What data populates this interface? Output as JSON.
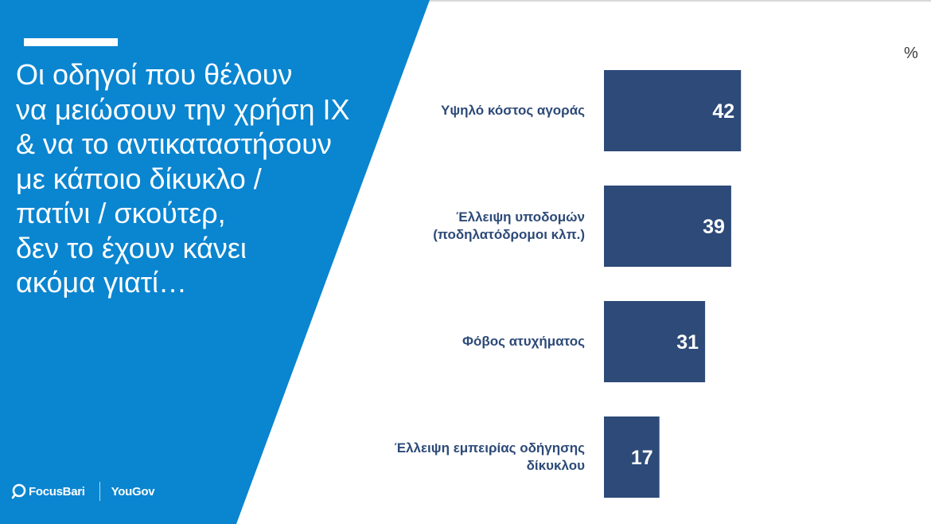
{
  "slide": {
    "headline": "Οι οδηγοί που θέλουν\nνα μειώσουν την χρήση ΙΧ\n& να το αντικαταστήσουν\nμε κάποιο δίκυκλο /\nπατίνι / σκούτερ,\nδεν το έχουν κάνει\nακόμα γιατί…",
    "unit": "%",
    "logos": {
      "focus": "FocusBari",
      "yougov": "YouGov"
    }
  },
  "colors": {
    "panel": "#0a85d0",
    "bar": "#2d4a78",
    "text": "#2d4a78"
  },
  "chart_data": {
    "type": "bar",
    "orientation": "horizontal",
    "categories": [
      "Υψηλό κόστος αγοράς",
      "Έλλειψη υποδομών\n(ποδηλατόδρομοι κλπ.)",
      "Φόβος ατυχήματος",
      "Έλλειψη εμπειρίας οδήγησης\nδίκυκλου"
    ],
    "values": [
      42,
      39,
      31,
      17
    ],
    "ylabel": "%",
    "data_labels": [
      "42",
      "39",
      "31",
      "17"
    ]
  }
}
